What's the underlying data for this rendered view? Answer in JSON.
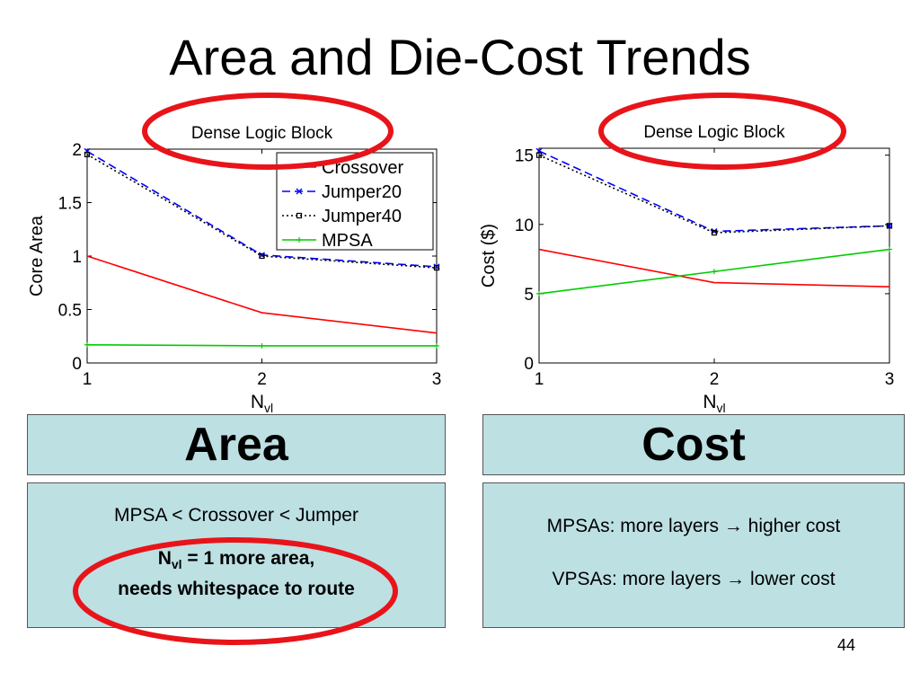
{
  "slide": {
    "title": "Area and Die-Cost Trends",
    "page_number": "44"
  },
  "panels": {
    "area": {
      "heading": "Area",
      "line1": "MPSA < Crossover < Jumper",
      "note_main": "N",
      "note_sub": "vl",
      "note_rest": " = 1 more area,",
      "note_line2": "needs whitespace to route"
    },
    "cost": {
      "heading": "Cost",
      "line1_a": "MPSAs: more layers ",
      "line1_b": " higher cost",
      "line2_a": "VPSAs: more layers ",
      "line2_b": " lower cost",
      "arrow": "→"
    }
  },
  "colors": {
    "crossover": "#ff0000",
    "jumper20": "#0000ff",
    "jumper40": "#000000",
    "mpsa": "#00cc00",
    "highlight_ring": "#e8141a",
    "panel_fill": "#bde0e3"
  },
  "chart_data": [
    {
      "type": "line",
      "title": "Dense Logic Block",
      "xlabel": "N",
      "xlabel_sub": "vl",
      "ylabel": "Core Area",
      "x": [
        1,
        2,
        3
      ],
      "xlim": [
        1,
        3
      ],
      "ylim": [
        0,
        2
      ],
      "xticks": [
        1,
        2,
        3
      ],
      "yticks": [
        0,
        0.5,
        1,
        1.5,
        2
      ],
      "ytick_labels": [
        "0",
        "0.5",
        "1",
        "1.5",
        "2"
      ],
      "legend": "top-right",
      "grid": false,
      "series": [
        {
          "name": "Crossover",
          "values": [
            1.0,
            0.47,
            0.28
          ],
          "color": "#ff0000",
          "style": "solid",
          "marker": "none"
        },
        {
          "name": "Jumper20",
          "values": [
            1.98,
            1.01,
            0.9
          ],
          "color": "#0000ff",
          "style": "dashed",
          "marker": "x"
        },
        {
          "name": "Jumper40",
          "values": [
            1.95,
            1.0,
            0.89
          ],
          "color": "#000000",
          "style": "dotted",
          "marker": "square"
        },
        {
          "name": "MPSA",
          "values": [
            0.17,
            0.16,
            0.16
          ],
          "color": "#00cc00",
          "style": "solid",
          "marker": "plus"
        }
      ]
    },
    {
      "type": "line",
      "title": "Dense Logic Block",
      "xlabel": "N",
      "xlabel_sub": "vl",
      "ylabel": "Cost ($)",
      "x": [
        1,
        2,
        3
      ],
      "xlim": [
        1,
        3
      ],
      "ylim": [
        0,
        15.5
      ],
      "xticks": [
        1,
        2,
        3
      ],
      "yticks": [
        0,
        5,
        10,
        15
      ],
      "ytick_labels": [
        "0",
        "5",
        "10",
        "15"
      ],
      "legend": "none",
      "grid": false,
      "series": [
        {
          "name": "Crossover",
          "values": [
            8.2,
            5.8,
            5.5
          ],
          "color": "#ff0000",
          "style": "solid",
          "marker": "none"
        },
        {
          "name": "Jumper20",
          "values": [
            15.3,
            9.5,
            9.9
          ],
          "color": "#0000ff",
          "style": "dashed",
          "marker": "x"
        },
        {
          "name": "Jumper40",
          "values": [
            15.0,
            9.4,
            9.9
          ],
          "color": "#000000",
          "style": "dotted",
          "marker": "square"
        },
        {
          "name": "MPSA",
          "values": [
            5.0,
            6.6,
            8.2
          ],
          "color": "#00cc00",
          "style": "solid",
          "marker": "plus"
        }
      ]
    }
  ]
}
